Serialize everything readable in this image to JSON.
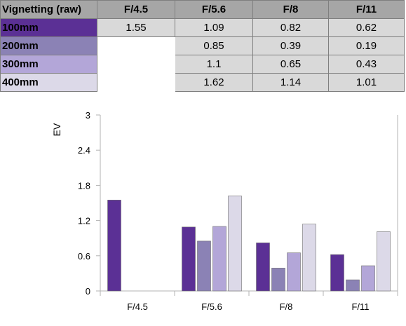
{
  "table": {
    "corner": "Vignetting (raw)",
    "columns": [
      "F/4.5",
      "F/5.6",
      "F/8",
      "F/11"
    ],
    "rows": [
      {
        "label": "100mm",
        "color": "#5b3095",
        "values": [
          "1.55",
          "1.09",
          "0.82",
          "0.62"
        ]
      },
      {
        "label": "200mm",
        "color": "#8b82b5",
        "values": [
          "",
          "0.85",
          "0.39",
          "0.19"
        ]
      },
      {
        "label": "300mm",
        "color": "#b3a6d8",
        "values": [
          "",
          "1.1",
          "0.65",
          "0.43"
        ]
      },
      {
        "label": "400mm",
        "color": "#dcd9e8",
        "values": [
          "",
          "1.62",
          "1.14",
          "1.01"
        ]
      }
    ]
  },
  "chart_data": {
    "type": "bar",
    "ylabel": "EV",
    "xlabel": "",
    "categories": [
      "F/4.5",
      "F/5.6",
      "F/8",
      "F/11"
    ],
    "ylim": [
      0,
      3
    ],
    "yticks": [
      0,
      0.6,
      1.2,
      1.8,
      2.4,
      3
    ],
    "ytick_labels": [
      "0",
      "0.6",
      "1.2",
      "1.8",
      "2.4",
      "3"
    ],
    "grid": "horizontal-none",
    "legend": "none",
    "series": [
      {
        "color": "#5b3095",
        "values": [
          1.55,
          1.09,
          0.82,
          0.62
        ]
      },
      {
        "color": "#8b82b5",
        "values": [
          null,
          0.85,
          0.39,
          0.19
        ]
      },
      {
        "color": "#b3a6d8",
        "values": [
          null,
          1.1,
          0.65,
          0.43
        ]
      },
      {
        "color": "#dcd9e8",
        "values": [
          null,
          1.62,
          1.14,
          1.01
        ]
      }
    ]
  }
}
